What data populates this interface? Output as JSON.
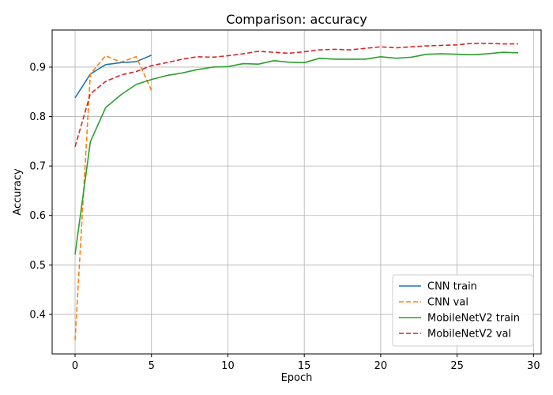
{
  "chart_data": {
    "type": "line",
    "title": "Comparison: accuracy",
    "xlabel": "Epoch",
    "ylabel": "Accuracy",
    "xlim": [
      -1.5,
      30.5
    ],
    "ylim": [
      0.32,
      0.975
    ],
    "xticks": [
      0,
      5,
      10,
      15,
      20,
      25,
      30
    ],
    "yticks": [
      0.4,
      0.5,
      0.6,
      0.7,
      0.8,
      0.9
    ],
    "grid": true,
    "legend_position": "lower-right",
    "series": [
      {
        "name": "CNN train",
        "color": "#1f77b4",
        "dash": "solid",
        "x": [
          0,
          1,
          2,
          3,
          4,
          5
        ],
        "y": [
          0.838,
          0.886,
          0.905,
          0.909,
          0.911,
          0.924
        ]
      },
      {
        "name": "CNN val",
        "color": "#ff7f0e",
        "dash": "dashed",
        "x": [
          0,
          1,
          2,
          3,
          4,
          5
        ],
        "y": [
          0.348,
          0.886,
          0.923,
          0.91,
          0.921,
          0.853
        ]
      },
      {
        "name": "MobileNetV2 train",
        "color": "#2ca02c",
        "dash": "solid",
        "x": [
          0,
          1,
          2,
          3,
          4,
          5,
          6,
          7,
          8,
          9,
          10,
          11,
          12,
          13,
          14,
          15,
          16,
          17,
          18,
          19,
          20,
          21,
          22,
          23,
          24,
          25,
          26,
          27,
          28,
          29
        ],
        "y": [
          0.521,
          0.749,
          0.818,
          0.844,
          0.865,
          0.875,
          0.883,
          0.888,
          0.895,
          0.9,
          0.901,
          0.907,
          0.906,
          0.913,
          0.91,
          0.909,
          0.918,
          0.916,
          0.916,
          0.916,
          0.921,
          0.918,
          0.92,
          0.926,
          0.927,
          0.926,
          0.925,
          0.927,
          0.93,
          0.929
        ]
      },
      {
        "name": "MobileNetV2 val",
        "color": "#d62728",
        "dash": "dashed",
        "x": [
          0,
          1,
          2,
          3,
          4,
          5,
          6,
          7,
          8,
          9,
          10,
          11,
          12,
          13,
          14,
          15,
          16,
          17,
          18,
          19,
          20,
          21,
          22,
          23,
          24,
          25,
          26,
          27,
          28,
          29
        ],
        "y": [
          0.739,
          0.846,
          0.871,
          0.884,
          0.891,
          0.903,
          0.909,
          0.916,
          0.921,
          0.92,
          0.923,
          0.927,
          0.932,
          0.93,
          0.928,
          0.931,
          0.935,
          0.936,
          0.935,
          0.938,
          0.941,
          0.939,
          0.941,
          0.943,
          0.944,
          0.945,
          0.948,
          0.948,
          0.947,
          0.947
        ]
      }
    ]
  }
}
